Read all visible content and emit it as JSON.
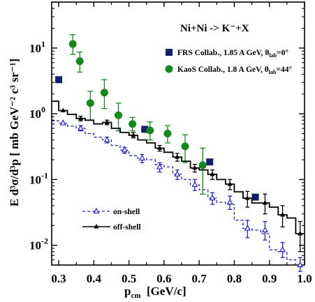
{
  "chart_data": {
    "type": "scatter",
    "title": "Ni+Ni -> K⁻+X",
    "xlabel": {
      "main": "p",
      "sub": "cm",
      "rest": "  [GeV/c]"
    },
    "ylabel": "E d³σ/d³p  [ mb GeV⁻² c³ sr⁻¹]",
    "xlim": [
      0.28,
      1.0
    ],
    "ylim": [
      0.005,
      50
    ],
    "yscale": "log",
    "x_ticks": [
      {
        "value": 0.3,
        "label": "0.3"
      },
      {
        "value": 0.4,
        "label": "0.4"
      },
      {
        "value": 0.5,
        "label": "0.5"
      },
      {
        "value": 0.6,
        "label": "0.6"
      },
      {
        "value": 0.7,
        "label": "0.7"
      },
      {
        "value": 0.8,
        "label": "0.8"
      },
      {
        "value": 0.9,
        "label": "0.9"
      },
      {
        "value": 1.0,
        "label": "1.0"
      }
    ],
    "y_ticks": [
      {
        "value": 0.01,
        "base": "10",
        "exp": "-2"
      },
      {
        "value": 0.1,
        "base": "10",
        "exp": "-1"
      },
      {
        "value": 1,
        "base": "10",
        "exp": "0"
      },
      {
        "value": 10,
        "base": "10",
        "exp": "1"
      }
    ],
    "legend_data": [
      {
        "marker": "square",
        "color": "#14206b",
        "label": "FRS Collab., 1.85 A GeV, θ",
        "sub": "lab",
        "tail": "=0°"
      },
      {
        "marker": "circle",
        "color": "#15881e",
        "label": "KaoS Collab., 1.8 A GeV,  θ",
        "sub": "lab",
        "tail": "=44°"
      }
    ],
    "legend_lines": [
      {
        "name": "on-shell",
        "style": "dashed",
        "marker": "open-triangle",
        "color": "#2222cc"
      },
      {
        "name": "off-shell",
        "style": "solid",
        "marker": "filled-triangle",
        "color": "#000000"
      }
    ],
    "series": [
      {
        "name": "FRS Collab., 1.85 A GeV, θlab=0°",
        "marker": "square",
        "color": "#14206b",
        "points": [
          {
            "x": 0.3,
            "y": 3.3
          },
          {
            "x": 0.545,
            "y": 0.58
          },
          {
            "x": 0.73,
            "y": 0.185
          },
          {
            "x": 0.86,
            "y": 0.054
          }
        ]
      },
      {
        "name": "KaoS Collab., 1.8 A GeV, θlab=44°",
        "marker": "circle",
        "color": "#15881e",
        "points": [
          {
            "x": 0.34,
            "y": 11.5,
            "lo": 8.0,
            "hi": 16.0
          },
          {
            "x": 0.36,
            "y": 6.3,
            "lo": 4.3,
            "hi": 8.7
          },
          {
            "x": 0.39,
            "y": 1.45,
            "lo": 0.8,
            "hi": 2.2
          },
          {
            "x": 0.43,
            "y": 2.1,
            "lo": 1.2,
            "hi": 3.3
          },
          {
            "x": 0.47,
            "y": 0.95,
            "lo": 0.55,
            "hi": 1.45
          },
          {
            "x": 0.51,
            "y": 0.7,
            "lo": 0.55,
            "hi": 0.88
          },
          {
            "x": 0.56,
            "y": 0.56,
            "lo": 0.4,
            "hi": 0.75
          },
          {
            "x": 0.61,
            "y": 0.5,
            "lo": 0.36,
            "hi": 0.66
          },
          {
            "x": 0.66,
            "y": 0.32,
            "lo": 0.18,
            "hi": 0.48
          },
          {
            "x": 0.71,
            "y": 0.165,
            "lo": 0.06,
            "hi": 0.3
          }
        ]
      },
      {
        "name": "off-shell",
        "type": "step",
        "color": "#000000",
        "edges": [
          0.28,
          0.3,
          0.325,
          0.35,
          0.375,
          0.4,
          0.425,
          0.45,
          0.475,
          0.5,
          0.525,
          0.55,
          0.575,
          0.6,
          0.625,
          0.65,
          0.675,
          0.7,
          0.725,
          0.75,
          0.775,
          0.8,
          0.825,
          0.85,
          0.875,
          0.9,
          0.925,
          0.95,
          0.975,
          1.0
        ],
        "values": [
          1.55,
          1.12,
          0.98,
          0.85,
          0.8,
          0.7,
          0.74,
          0.6,
          0.52,
          0.47,
          0.4,
          0.36,
          0.3,
          0.26,
          0.22,
          0.19,
          0.15,
          0.14,
          0.12,
          0.1,
          0.085,
          0.065,
          0.052,
          0.044,
          0.044,
          0.038,
          0.029,
          0.026,
          0.015
        ],
        "points": [
          {
            "x": 0.3125,
            "y": 1.12,
            "lo": 1.12,
            "hi": 1.12
          },
          {
            "x": 0.3625,
            "y": 0.85,
            "lo": 0.78,
            "hi": 0.92
          },
          {
            "x": 0.4375,
            "y": 0.74,
            "lo": 0.68,
            "hi": 0.8
          },
          {
            "x": 0.5125,
            "y": 0.47,
            "lo": 0.43,
            "hi": 0.52
          },
          {
            "x": 0.5875,
            "y": 0.3,
            "lo": 0.27,
            "hi": 0.33
          },
          {
            "x": 0.6375,
            "y": 0.22,
            "lo": 0.19,
            "hi": 0.25
          },
          {
            "x": 0.6875,
            "y": 0.15,
            "lo": 0.13,
            "hi": 0.17
          },
          {
            "x": 0.7375,
            "y": 0.12,
            "lo": 0.1,
            "hi": 0.14
          },
          {
            "x": 0.7875,
            "y": 0.085,
            "lo": 0.07,
            "hi": 0.1
          },
          {
            "x": 0.8375,
            "y": 0.052,
            "lo": 0.038,
            "hi": 0.066
          },
          {
            "x": 0.8875,
            "y": 0.044,
            "lo": 0.03,
            "hi": 0.06
          },
          {
            "x": 0.9375,
            "y": 0.029,
            "lo": 0.019,
            "hi": 0.04
          },
          {
            "x": 0.9875,
            "y": 0.015,
            "lo": 0.008,
            "hi": 0.023
          }
        ]
      },
      {
        "name": "on-shell",
        "type": "step",
        "color": "#2222cc",
        "edges": [
          0.28,
          0.3,
          0.325,
          0.35,
          0.375,
          0.4,
          0.425,
          0.45,
          0.475,
          0.5,
          0.525,
          0.55,
          0.575,
          0.6,
          0.625,
          0.65,
          0.675,
          0.7,
          0.725,
          0.75,
          0.775,
          0.8,
          0.825,
          0.85,
          0.875,
          0.9,
          0.925,
          0.95,
          0.975,
          1.0
        ],
        "values": [
          0.78,
          0.72,
          0.65,
          0.6,
          0.5,
          0.44,
          0.4,
          0.33,
          0.28,
          0.23,
          0.21,
          0.2,
          0.17,
          0.155,
          0.12,
          0.1,
          0.083,
          0.07,
          0.052,
          0.045,
          0.042,
          0.024,
          0.018,
          0.017,
          0.015,
          0.0085,
          0.008,
          0.006,
          0.005
        ],
        "points": [
          {
            "x": 0.3125,
            "y": 0.72,
            "lo": 0.72,
            "hi": 0.72
          },
          {
            "x": 0.3625,
            "y": 0.6,
            "lo": 0.55,
            "hi": 0.66
          },
          {
            "x": 0.4375,
            "y": 0.4,
            "lo": 0.36,
            "hi": 0.44
          },
          {
            "x": 0.4875,
            "y": 0.28,
            "lo": 0.25,
            "hi": 0.31
          },
          {
            "x": 0.5375,
            "y": 0.21,
            "lo": 0.18,
            "hi": 0.24
          },
          {
            "x": 0.5875,
            "y": 0.155,
            "lo": 0.13,
            "hi": 0.18
          },
          {
            "x": 0.6375,
            "y": 0.12,
            "lo": 0.1,
            "hi": 0.14
          },
          {
            "x": 0.6875,
            "y": 0.083,
            "lo": 0.068,
            "hi": 0.1
          },
          {
            "x": 0.7375,
            "y": 0.052,
            "lo": 0.042,
            "hi": 0.063
          },
          {
            "x": 0.7875,
            "y": 0.045,
            "lo": 0.035,
            "hi": 0.056
          },
          {
            "x": 0.8375,
            "y": 0.018,
            "lo": 0.013,
            "hi": 0.024
          },
          {
            "x": 0.8875,
            "y": 0.017,
            "lo": 0.012,
            "hi": 0.023
          },
          {
            "x": 0.9375,
            "y": 0.0085,
            "lo": 0.0065,
            "hi": 0.011
          },
          {
            "x": 0.9875,
            "y": 0.005,
            "lo": 0.004,
            "hi": 0.0065
          }
        ]
      }
    ]
  }
}
